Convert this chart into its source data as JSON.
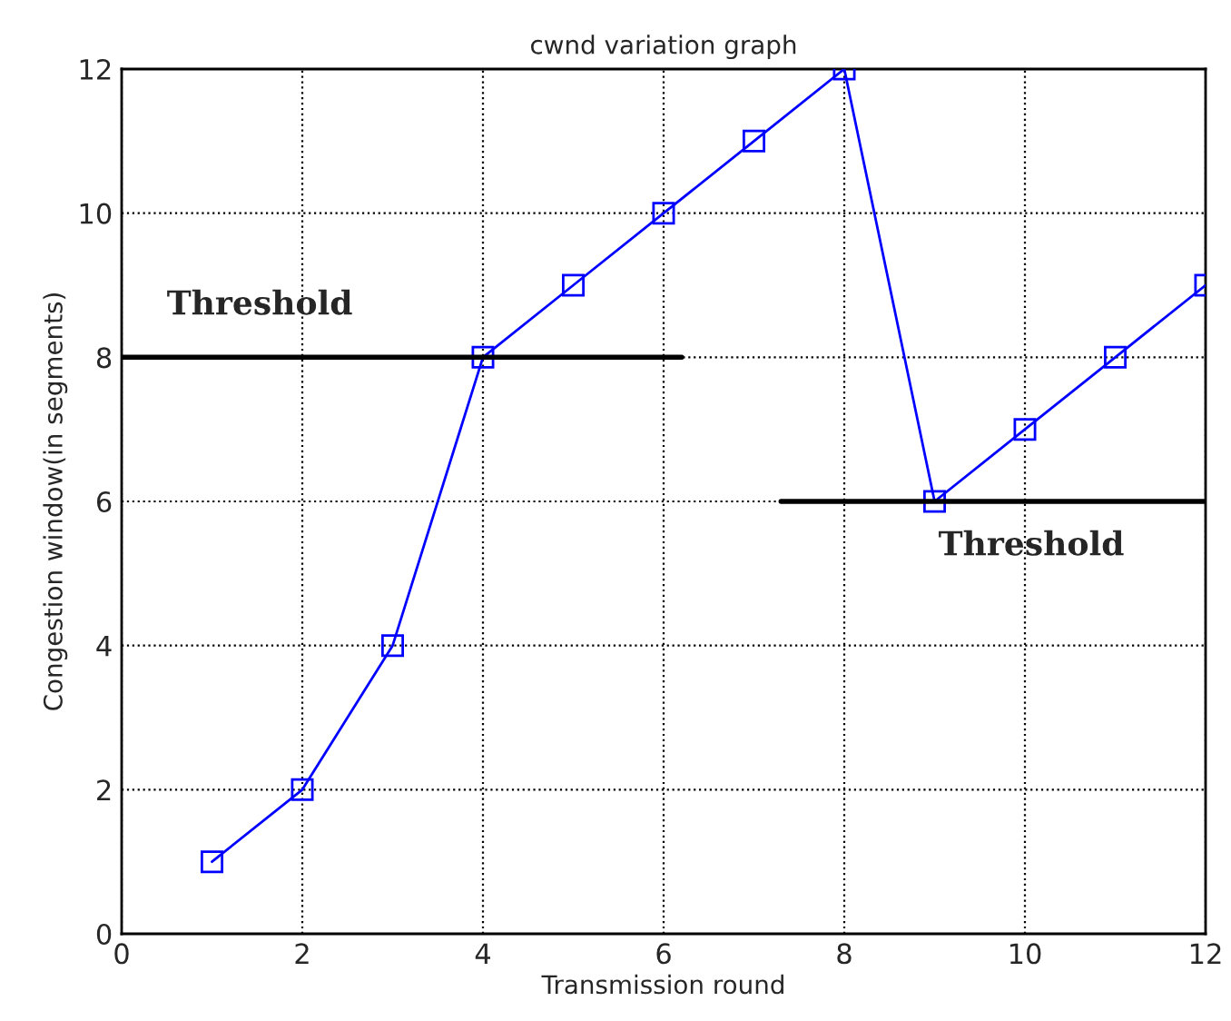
{
  "chart_data": {
    "type": "line",
    "title": "cwnd variation graph",
    "xlabel": "Transmission round",
    "ylabel": "Congestion window(in segments)",
    "x": [
      1,
      2,
      3,
      4,
      5,
      6,
      7,
      8,
      9,
      10,
      11,
      12
    ],
    "series": [
      {
        "color": "#0000ff",
        "values": [
          1,
          2,
          4,
          8,
          9,
          10,
          11,
          12,
          6,
          7,
          8,
          9
        ],
        "marker": "square"
      },
      {
        "name": "Threshold",
        "type": "line",
        "color": "#000000",
        "x": [
          0,
          6.2
        ],
        "values": [
          8,
          8
        ],
        "marker": "none"
      },
      {
        "name": "Threshold",
        "type": "line",
        "color": "#000000",
        "x": [
          7.3,
          12
        ],
        "values": [
          6,
          6
        ],
        "marker": "none"
      }
    ],
    "xlim": [
      0,
      12
    ],
    "ylim": [
      0,
      12
    ],
    "xticks": [
      0,
      2,
      4,
      6,
      8,
      10,
      12
    ],
    "yticks": [
      0,
      2,
      4,
      6,
      8,
      10,
      12
    ],
    "grid": true,
    "line_style": "solid",
    "legend": false
  }
}
